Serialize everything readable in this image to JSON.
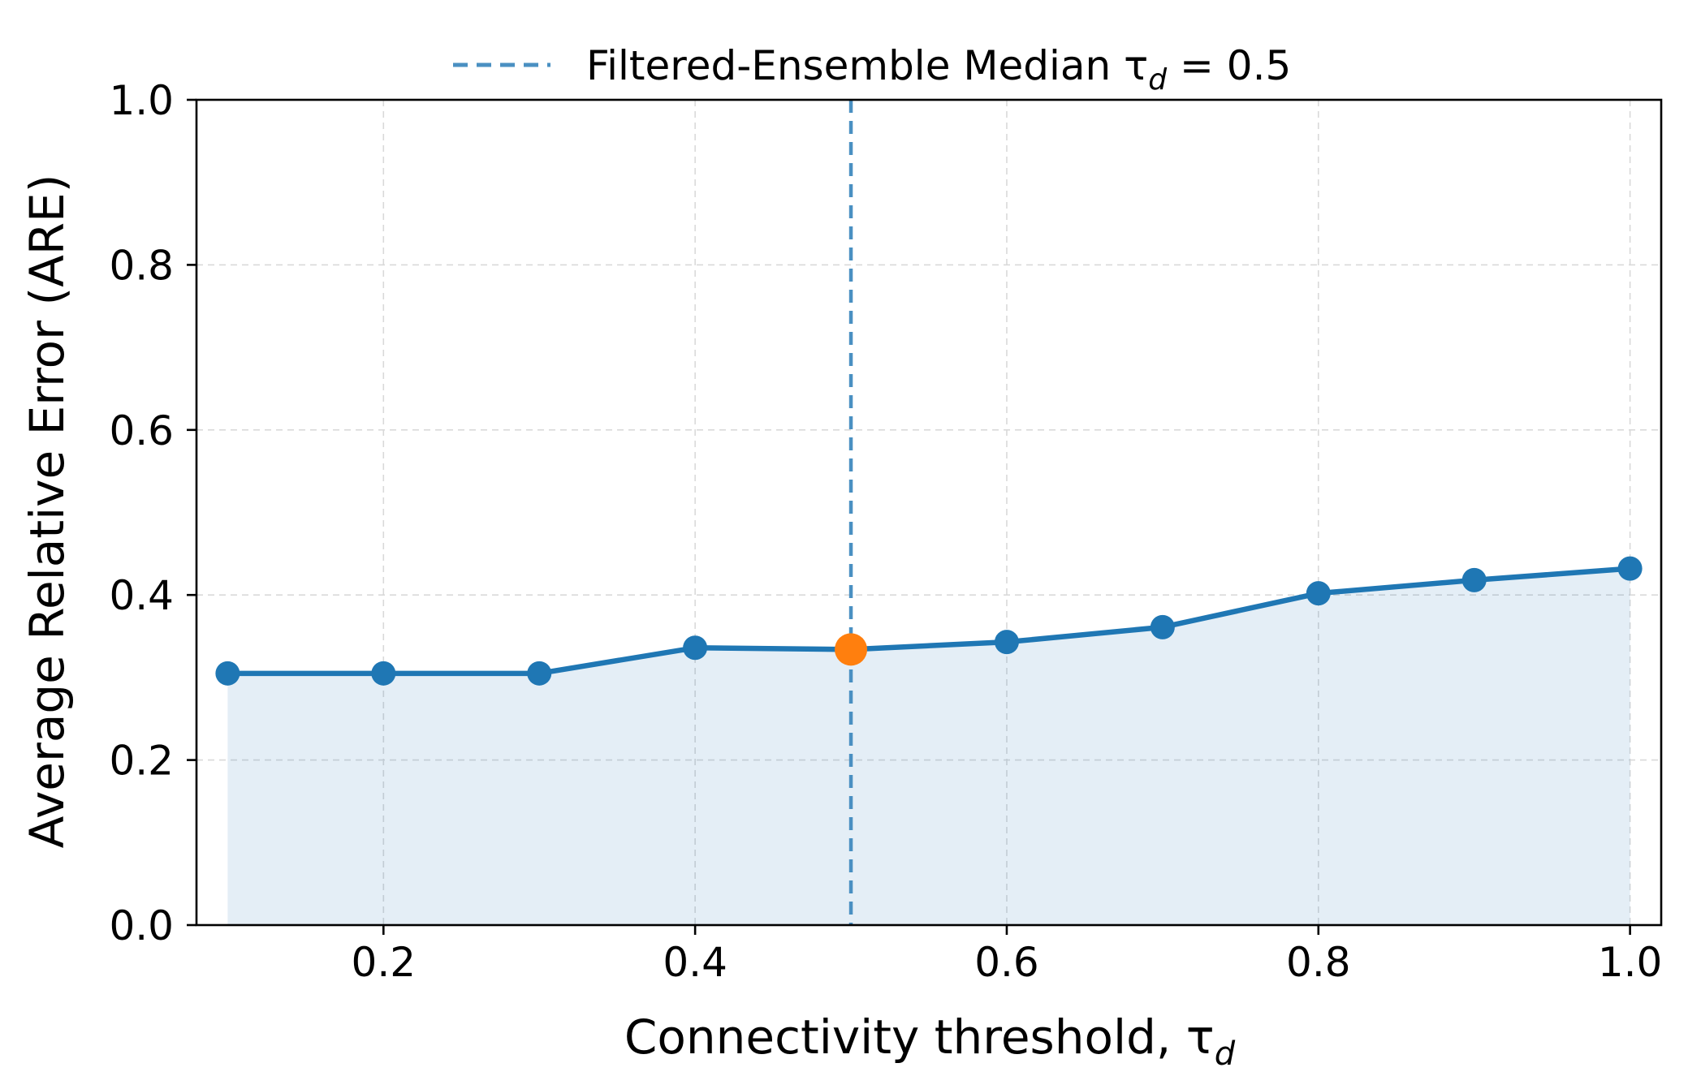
{
  "chart_data": {
    "type": "line",
    "title": "",
    "xlabel": "Connectivity threshold, τ",
    "xlabel_subscript": "d",
    "ylabel": "Average Relative Error (ARE)",
    "xlim": [
      0.08,
      1.02
    ],
    "ylim": [
      0.0,
      1.0
    ],
    "x_ticks": [
      0.2,
      0.4,
      0.6,
      0.8,
      1.0
    ],
    "x_tick_labels": [
      "0.2",
      "0.4",
      "0.6",
      "0.8",
      "1.0"
    ],
    "y_ticks": [
      0.0,
      0.2,
      0.4,
      0.6,
      0.8,
      1.0
    ],
    "y_tick_labels": [
      "0.0",
      "0.2",
      "0.4",
      "0.6",
      "0.8",
      "1.0"
    ],
    "grid": true,
    "series": [
      {
        "x": [
          0.1,
          0.2,
          0.3,
          0.4,
          0.5,
          0.6,
          0.7,
          0.8,
          0.9,
          1.0
        ],
        "values": [
          0.305,
          0.305,
          0.305,
          0.336,
          0.334,
          0.343,
          0.361,
          0.402,
          0.418,
          0.432
        ],
        "color": "#1f77b4",
        "fill": true,
        "fill_color": "#1f77b4",
        "fill_opacity": 0.12
      }
    ],
    "highlight_point": {
      "x": 0.5,
      "y": 0.334,
      "color": "#ff7f0e"
    },
    "reference_line": {
      "orientation": "vertical",
      "x": 0.5,
      "color": "#4a90c2",
      "style": "dashed",
      "legend_label": "Filtered-Ensemble Median τ",
      "legend_subscript": "d",
      "legend_suffix": " = 0.5"
    },
    "legend_position": "top-center"
  }
}
